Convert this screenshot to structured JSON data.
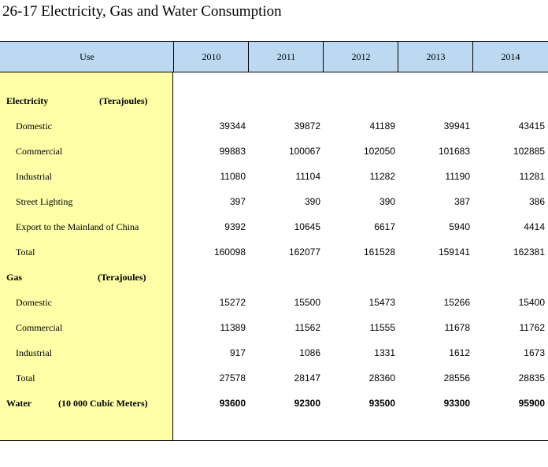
{
  "title": "26-17  Electricity, Gas and Water Consumption",
  "header": {
    "use_label": "Use",
    "years": [
      "2010",
      "2011",
      "2012",
      "2013",
      "2014"
    ]
  },
  "sections": {
    "electricity": {
      "label": "Electricity",
      "unit": "(Terajoules)"
    },
    "gas": {
      "label": "Gas",
      "unit": "(Terajoules)"
    },
    "water": {
      "label": "Water",
      "unit": "(10 000 Cubic Meters)"
    }
  },
  "rows": {
    "elec_domestic": {
      "label": "Domestic",
      "values": [
        "39344",
        "39872",
        "41189",
        "39941",
        "43415"
      ]
    },
    "elec_commercial": {
      "label": "Commercial",
      "values": [
        "99883",
        "100067",
        "102050",
        "101683",
        "102885"
      ]
    },
    "elec_industrial": {
      "label": "Industrial",
      "values": [
        "11080",
        "11104",
        "11282",
        "11190",
        "11281"
      ]
    },
    "elec_street": {
      "label": "Street Lighting",
      "values": [
        "397",
        "390",
        "390",
        "387",
        "386"
      ]
    },
    "elec_export": {
      "label": "Export to the Mainland of China",
      "values": [
        "9392",
        "10645",
        "6617",
        "5940",
        "4414"
      ]
    },
    "elec_total": {
      "label": "Total",
      "values": [
        "160098",
        "162077",
        "161528",
        "159141",
        "162381"
      ]
    },
    "gas_domestic": {
      "label": "Domestic",
      "values": [
        "15272",
        "15500",
        "15473",
        "15266",
        "15400"
      ]
    },
    "gas_commercial": {
      "label": "Commercial",
      "values": [
        "11389",
        "11562",
        "11555",
        "11678",
        "11762"
      ]
    },
    "gas_industrial": {
      "label": "Industrial",
      "values": [
        "917",
        "1086",
        "1331",
        "1612",
        "1673"
      ]
    },
    "gas_total": {
      "label": "Total",
      "values": [
        "27578",
        "28147",
        "28360",
        "28556",
        "28835"
      ]
    },
    "water": {
      "values": [
        "93600",
        "92300",
        "93500",
        "93300",
        "95900"
      ]
    }
  }
}
